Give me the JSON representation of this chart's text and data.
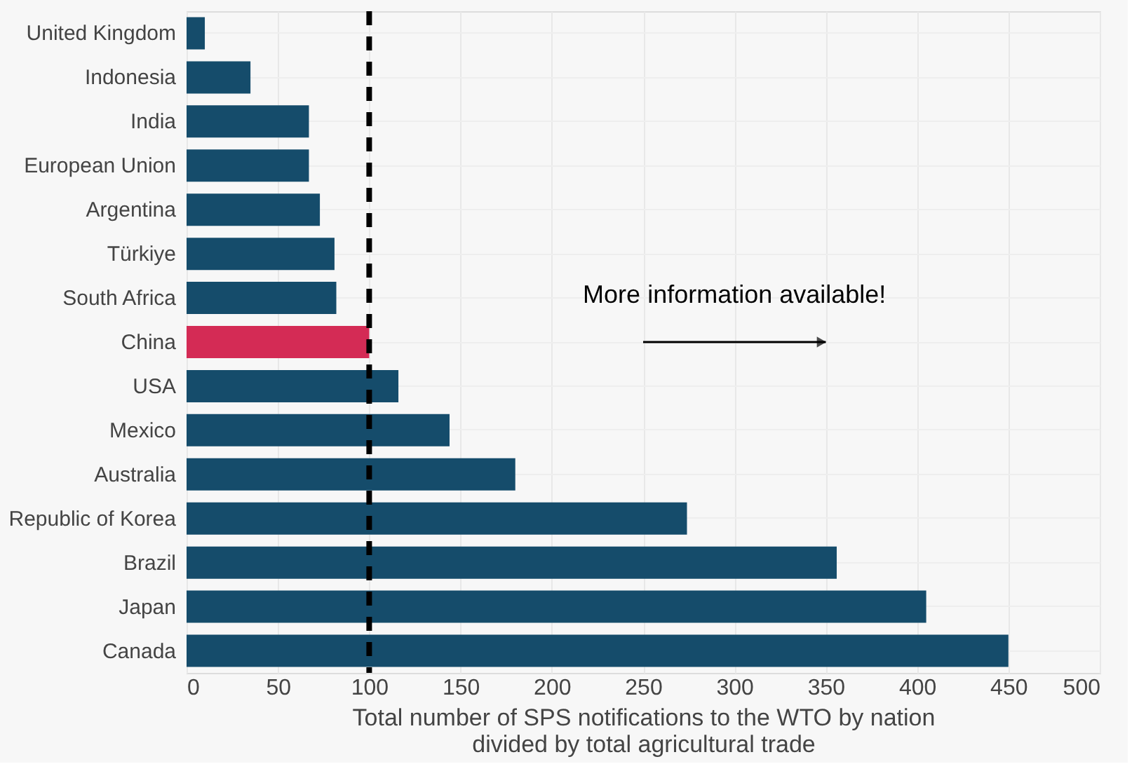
{
  "chart_data": {
    "type": "bar",
    "orientation": "horizontal",
    "categories": [
      "United Kingdom",
      "Indonesia",
      "India",
      "European Union",
      "Argentina",
      "Türkiye",
      "South Africa",
      "China",
      "USA",
      "Mexico",
      "Australia",
      "Republic of Korea",
      "Brazil",
      "Japan",
      "Canada"
    ],
    "values": [
      10,
      35,
      67,
      67,
      73,
      81,
      82,
      100,
      116,
      144,
      180,
      274,
      356,
      405,
      450
    ],
    "colors": [
      "#154c6b",
      "#154c6b",
      "#154c6b",
      "#154c6b",
      "#154c6b",
      "#154c6b",
      "#154c6b",
      "#d42b55",
      "#154c6b",
      "#154c6b",
      "#154c6b",
      "#154c6b",
      "#154c6b",
      "#154c6b",
      "#154c6b"
    ],
    "xlim": [
      0,
      500
    ],
    "xticks": [
      0,
      50,
      100,
      150,
      200,
      250,
      300,
      350,
      400,
      450,
      500
    ],
    "xlabel": "Total number of SPS notifications to the WTO by nation\ndivided by total agricultural trade",
    "ref_lines": [
      {
        "axis": "x",
        "value": 100,
        "color": "#000000",
        "line_style": "dashed"
      }
    ],
    "annotations": [
      "More information available!"
    ],
    "grid": true
  }
}
